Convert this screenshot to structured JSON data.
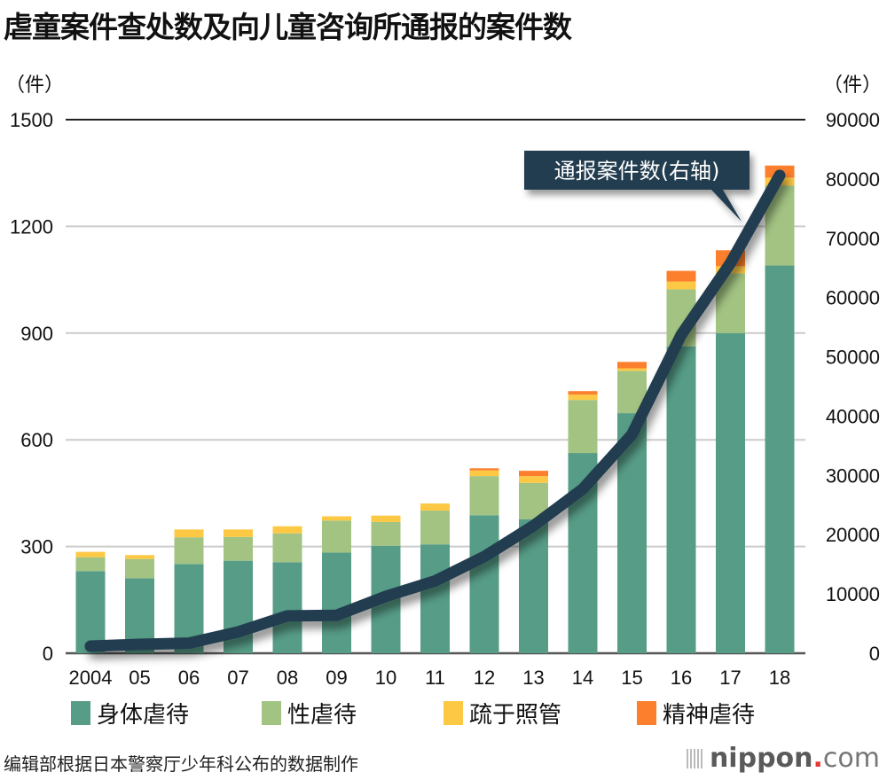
{
  "title": "虐童案件查处数及向儿童咨询所通报的案件数",
  "left_unit": "（件）",
  "right_unit": "（件）",
  "source_note": "编辑部根据日本警察厅少年科公布的数据制作",
  "brand": {
    "name": "nippon",
    "dot": ".",
    "tld": "com"
  },
  "colors": {
    "physical": "#569c86",
    "sexual": "#a2c382",
    "neglect": "#fdc945",
    "psychological": "#fb7f2d",
    "line": "#233d4f",
    "grid": "#cccccc",
    "top_line": "#222222",
    "axis": "#555555"
  },
  "chart_data": {
    "type": "bar",
    "stacked": true,
    "title": "虐童案件查处数及向儿童咨询所通报的案件数",
    "categories": [
      "2004",
      "05",
      "06",
      "07",
      "08",
      "09",
      "10",
      "11",
      "12",
      "13",
      "14",
      "15",
      "16",
      "17",
      "18"
    ],
    "series": [
      {
        "name": "身体虐待",
        "key": "physical",
        "axis": "left",
        "values": [
          231,
          211,
          251,
          260,
          256,
          283,
          302,
          306,
          388,
          377,
          563,
          675,
          863,
          900,
          1090
        ]
      },
      {
        "name": "性虐待",
        "key": "sexual",
        "axis": "left",
        "values": [
          39,
          54,
          75,
          67,
          81,
          90,
          67,
          95,
          110,
          102,
          149,
          119,
          160,
          168,
          225
        ]
      },
      {
        "name": "疏于照管",
        "key": "neglect",
        "axis": "left",
        "values": [
          15,
          11,
          22,
          21,
          20,
          12,
          18,
          20,
          16,
          19,
          15,
          7,
          22,
          20,
          22
        ]
      },
      {
        "name": "精神虐待",
        "key": "psychological",
        "axis": "left",
        "values": [
          0,
          0,
          0,
          0,
          0,
          0,
          0,
          0,
          6,
          15,
          10,
          18,
          30,
          45,
          34
        ]
      }
    ],
    "line_series": {
      "name": "通报案件数（右轴）",
      "axis": "right",
      "values": [
        1200,
        1500,
        1700,
        3600,
        6300,
        6400,
        9600,
        12200,
        16300,
        21500,
        27700,
        36900,
        53700,
        65800,
        80600
      ]
    },
    "callout": "通报案件数(右轴)",
    "left_axis": {
      "ylim": [
        0,
        1500
      ],
      "ticks": [
        "0",
        "300",
        "600",
        "900",
        "1200",
        "1500"
      ],
      "tick_values": [
        0,
        300,
        600,
        900,
        1200,
        1500
      ]
    },
    "right_axis": {
      "ylim": [
        0,
        90000
      ],
      "ticks": [
        "0",
        "10000",
        "20000",
        "30000",
        "40000",
        "50000",
        "60000",
        "70000",
        "80000",
        "90000"
      ],
      "tick_values": [
        0,
        10000,
        20000,
        30000,
        40000,
        50000,
        60000,
        70000,
        80000,
        90000
      ]
    },
    "xlabel": "",
    "ylabel_left": "（件）",
    "ylabel_right": "（件）",
    "grid": true,
    "legend_position": "bottom",
    "legend": [
      "身体虐待",
      "性虐待",
      "疏于照管",
      "精神虐待"
    ]
  }
}
